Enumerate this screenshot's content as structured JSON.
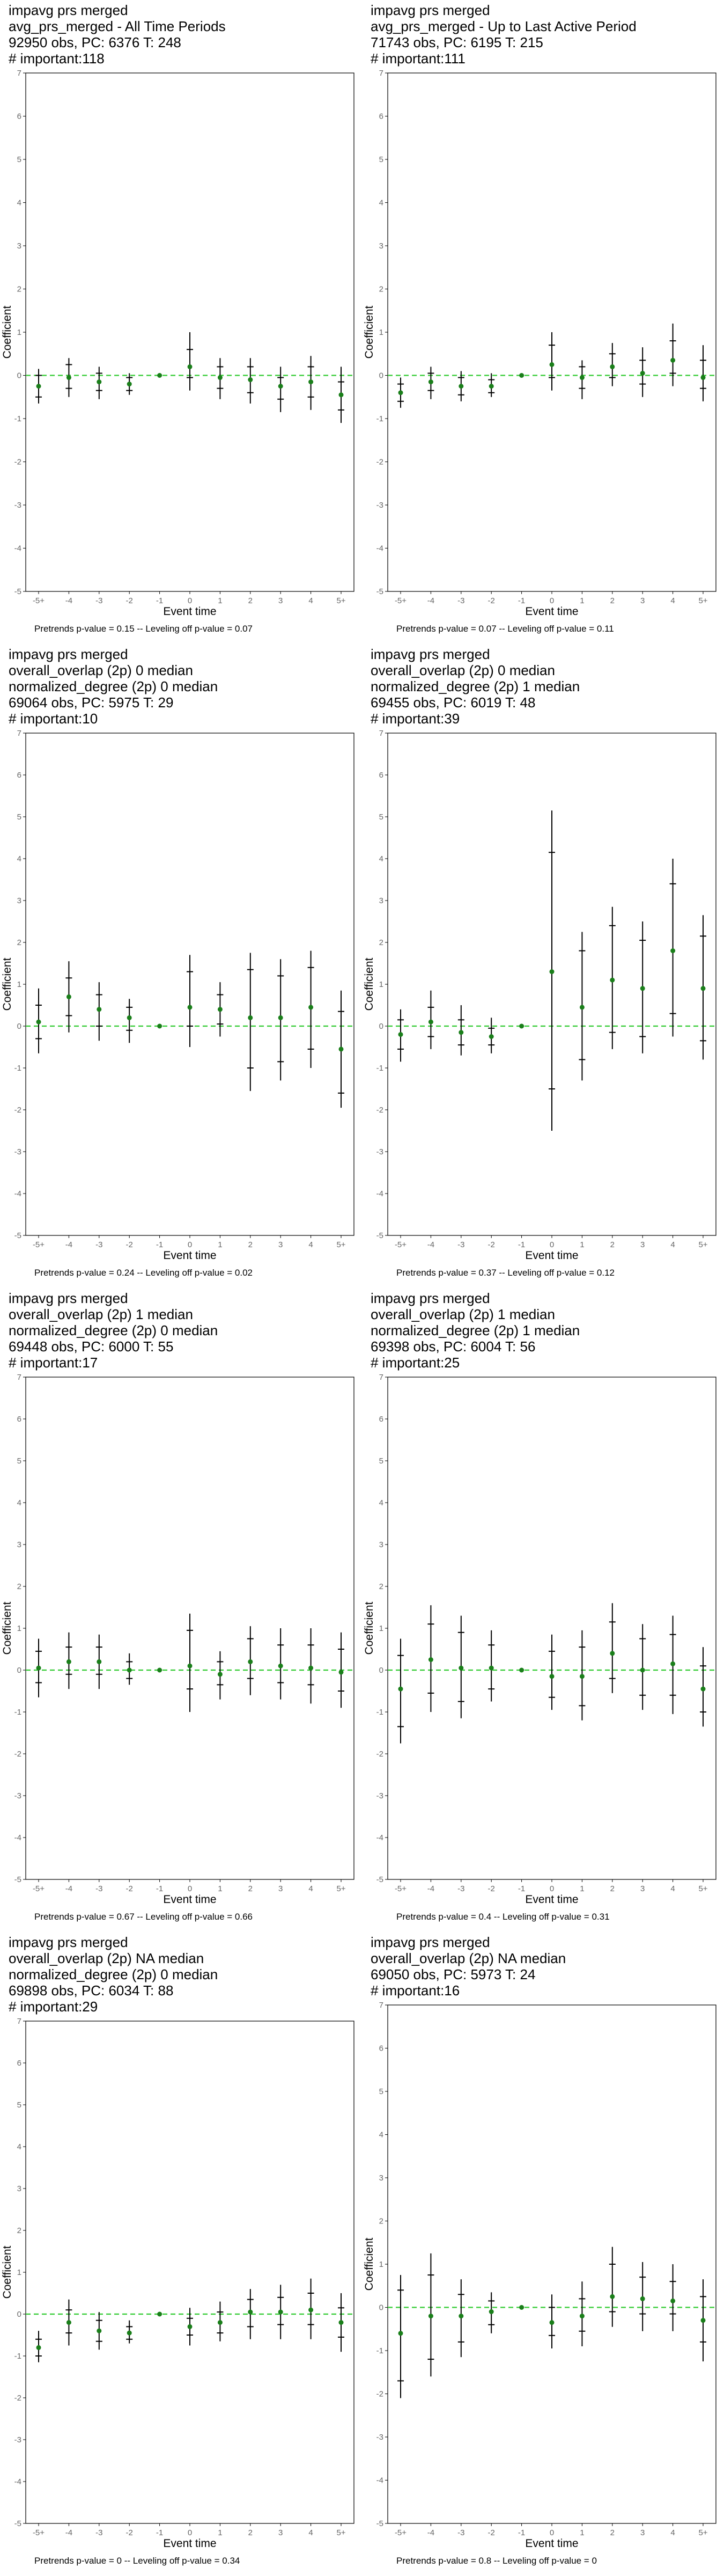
{
  "charts": [
    {
      "header": [
        "impavg prs merged",
        "avg_prs_merged - All Time Periods",
        "92950 obs, PC: 6376 T: 248",
        "# important:118"
      ],
      "footer": "Pretrends p-value = 0.15 -- Leveling off p-value = 0.07",
      "points": [
        {
          "y": -0.25,
          "ci": [
            -0.65,
            0.15
          ],
          "ci2": [
            -0.5,
            0.0
          ]
        },
        {
          "y": -0.05,
          "ci": [
            -0.5,
            0.4
          ],
          "ci2": [
            -0.3,
            0.25
          ]
        },
        {
          "y": -0.15,
          "ci": [
            -0.55,
            0.2
          ],
          "ci2": [
            -0.35,
            0.05
          ]
        },
        {
          "y": -0.2,
          "ci": [
            -0.45,
            0.05
          ],
          "ci2": [
            -0.35,
            -0.05
          ]
        },
        {
          "y": 0.0,
          "ci": [
            0.0,
            0.0
          ],
          "ci2": [
            0.0,
            0.0
          ]
        },
        {
          "y": 0.2,
          "ci": [
            -0.35,
            1.0
          ],
          "ci2": [
            -0.05,
            0.6
          ]
        },
        {
          "y": -0.05,
          "ci": [
            -0.55,
            0.4
          ],
          "ci2": [
            -0.3,
            0.2
          ]
        },
        {
          "y": -0.1,
          "ci": [
            -0.65,
            0.4
          ],
          "ci2": [
            -0.4,
            0.2
          ]
        },
        {
          "y": -0.25,
          "ci": [
            -0.85,
            0.2
          ],
          "ci2": [
            -0.55,
            -0.05
          ]
        },
        {
          "y": -0.15,
          "ci": [
            -0.8,
            0.45
          ],
          "ci2": [
            -0.5,
            0.2
          ]
        },
        {
          "y": -0.45,
          "ci": [
            -1.1,
            0.2
          ],
          "ci2": [
            -0.8,
            -0.15
          ]
        }
      ]
    },
    {
      "header": [
        "impavg prs merged",
        "avg_prs_merged - Up to Last Active Period",
        "71743 obs, PC: 6195 T: 215",
        "# important:111"
      ],
      "footer": "Pretrends p-value = 0.07 -- Leveling off p-value = 0.11",
      "points": [
        {
          "y": -0.4,
          "ci": [
            -0.75,
            -0.05
          ],
          "ci2": [
            -0.6,
            -0.2
          ]
        },
        {
          "y": -0.15,
          "ci": [
            -0.55,
            0.2
          ],
          "ci2": [
            -0.35,
            0.05
          ]
        },
        {
          "y": -0.25,
          "ci": [
            -0.6,
            0.1
          ],
          "ci2": [
            -0.45,
            -0.05
          ]
        },
        {
          "y": -0.25,
          "ci": [
            -0.5,
            0.05
          ],
          "ci2": [
            -0.4,
            -0.1
          ]
        },
        {
          "y": 0.0,
          "ci": [
            0.0,
            0.0
          ],
          "ci2": [
            0.0,
            0.0
          ]
        },
        {
          "y": 0.25,
          "ci": [
            -0.35,
            1.0
          ],
          "ci2": [
            -0.05,
            0.7
          ]
        },
        {
          "y": -0.05,
          "ci": [
            -0.55,
            0.35
          ],
          "ci2": [
            -0.3,
            0.2
          ]
        },
        {
          "y": 0.2,
          "ci": [
            -0.25,
            0.75
          ],
          "ci2": [
            -0.05,
            0.5
          ]
        },
        {
          "y": 0.05,
          "ci": [
            -0.5,
            0.65
          ],
          "ci2": [
            -0.2,
            0.35
          ]
        },
        {
          "y": 0.35,
          "ci": [
            -0.25,
            1.2
          ],
          "ci2": [
            0.05,
            0.8
          ]
        },
        {
          "y": -0.05,
          "ci": [
            -0.6,
            0.7
          ],
          "ci2": [
            -0.3,
            0.35
          ]
        }
      ]
    },
    {
      "header": [
        "impavg prs merged",
        "overall_overlap (2p) 0 median",
        "normalized_degree (2p) 0 median",
        "69064 obs, PC: 5975 T: 29",
        "# important:10"
      ],
      "footer": "Pretrends p-value = 0.24 -- Leveling off p-value = 0.02",
      "points": [
        {
          "y": 0.1,
          "ci": [
            -0.65,
            0.9
          ],
          "ci2": [
            -0.3,
            0.5
          ]
        },
        {
          "y": 0.7,
          "ci": [
            -0.15,
            1.55
          ],
          "ci2": [
            0.25,
            1.15
          ]
        },
        {
          "y": 0.4,
          "ci": [
            -0.35,
            1.05
          ],
          "ci2": [
            0.0,
            0.75
          ]
        },
        {
          "y": 0.2,
          "ci": [
            -0.4,
            0.65
          ],
          "ci2": [
            -0.1,
            0.45
          ]
        },
        {
          "y": 0.0,
          "ci": [
            0.0,
            0.0
          ],
          "ci2": [
            0.0,
            0.0
          ]
        },
        {
          "y": 0.45,
          "ci": [
            -0.5,
            1.7
          ],
          "ci2": [
            0.0,
            1.3
          ]
        },
        {
          "y": 0.4,
          "ci": [
            -0.25,
            1.05
          ],
          "ci2": [
            0.05,
            0.75
          ]
        },
        {
          "y": 0.2,
          "ci": [
            -1.55,
            1.75
          ],
          "ci2": [
            -1.0,
            1.35
          ]
        },
        {
          "y": 0.2,
          "ci": [
            -1.3,
            1.6
          ],
          "ci2": [
            -0.85,
            1.2
          ]
        },
        {
          "y": 0.45,
          "ci": [
            -1.0,
            1.8
          ],
          "ci2": [
            -0.55,
            1.4
          ]
        },
        {
          "y": -0.55,
          "ci": [
            -1.95,
            0.85
          ],
          "ci2": [
            -1.6,
            0.35
          ]
        }
      ]
    },
    {
      "header": [
        "impavg prs merged",
        "overall_overlap (2p) 0 median",
        "normalized_degree (2p) 1 median",
        "69455 obs, PC: 6019 T: 48",
        "# important:39"
      ],
      "footer": "Pretrends p-value = 0.37 -- Leveling off p-value = 0.12",
      "points": [
        {
          "y": -0.2,
          "ci": [
            -0.85,
            0.4
          ],
          "ci2": [
            -0.55,
            0.15
          ]
        },
        {
          "y": 0.1,
          "ci": [
            -0.55,
            0.85
          ],
          "ci2": [
            -0.25,
            0.45
          ]
        },
        {
          "y": -0.15,
          "ci": [
            -0.7,
            0.5
          ],
          "ci2": [
            -0.45,
            0.15
          ]
        },
        {
          "y": -0.25,
          "ci": [
            -0.65,
            0.2
          ],
          "ci2": [
            -0.45,
            -0.05
          ]
        },
        {
          "y": 0.0,
          "ci": [
            0.0,
            0.0
          ],
          "ci2": [
            0.0,
            0.0
          ]
        },
        {
          "y": 1.3,
          "ci": [
            -2.5,
            5.15
          ],
          "ci2": [
            -1.5,
            4.15
          ]
        },
        {
          "y": 0.45,
          "ci": [
            -1.3,
            2.25
          ],
          "ci2": [
            -0.8,
            1.8
          ]
        },
        {
          "y": 1.1,
          "ci": [
            -0.55,
            2.85
          ],
          "ci2": [
            -0.15,
            2.4
          ]
        },
        {
          "y": 0.9,
          "ci": [
            -0.65,
            2.5
          ],
          "ci2": [
            -0.25,
            2.05
          ]
        },
        {
          "y": 1.8,
          "ci": [
            -0.25,
            4.0
          ],
          "ci2": [
            0.3,
            3.4
          ]
        },
        {
          "y": 0.9,
          "ci": [
            -0.8,
            2.65
          ],
          "ci2": [
            -0.35,
            2.15
          ]
        }
      ]
    },
    {
      "header": [
        "impavg prs merged",
        "overall_overlap (2p) 1 median",
        "normalized_degree (2p) 0 median",
        "69448 obs, PC: 6000 T: 55",
        "# important:17"
      ],
      "footer": "Pretrends p-value = 0.67 -- Leveling off p-value = 0.66",
      "points": [
        {
          "y": 0.05,
          "ci": [
            -0.65,
            0.75
          ],
          "ci2": [
            -0.3,
            0.45
          ]
        },
        {
          "y": 0.2,
          "ci": [
            -0.45,
            0.9
          ],
          "ci2": [
            -0.1,
            0.55
          ]
        },
        {
          "y": 0.2,
          "ci": [
            -0.45,
            0.85
          ],
          "ci2": [
            -0.1,
            0.55
          ]
        },
        {
          "y": 0.0,
          "ci": [
            -0.35,
            0.4
          ],
          "ci2": [
            -0.2,
            0.2
          ]
        },
        {
          "y": 0.0,
          "ci": [
            0.0,
            0.0
          ],
          "ci2": [
            0.0,
            0.0
          ]
        },
        {
          "y": 0.1,
          "ci": [
            -1.0,
            1.35
          ],
          "ci2": [
            -0.45,
            0.95
          ]
        },
        {
          "y": -0.1,
          "ci": [
            -0.7,
            0.45
          ],
          "ci2": [
            -0.35,
            0.2
          ]
        },
        {
          "y": 0.2,
          "ci": [
            -0.6,
            1.05
          ],
          "ci2": [
            -0.2,
            0.75
          ]
        },
        {
          "y": 0.1,
          "ci": [
            -0.7,
            1.0
          ],
          "ci2": [
            -0.3,
            0.6
          ]
        },
        {
          "y": 0.05,
          "ci": [
            -0.8,
            1.0
          ],
          "ci2": [
            -0.35,
            0.6
          ]
        },
        {
          "y": -0.05,
          "ci": [
            -0.9,
            0.9
          ],
          "ci2": [
            -0.5,
            0.5
          ]
        }
      ]
    },
    {
      "header": [
        "impavg prs merged",
        "overall_overlap (2p) 1 median",
        "normalized_degree (2p) 1 median",
        "69398 obs, PC: 6004 T: 56",
        "# important:25"
      ],
      "footer": "Pretrends p-value = 0.4 -- Leveling off p-value = 0.31",
      "points": [
        {
          "y": -0.45,
          "ci": [
            -1.75,
            0.75
          ],
          "ci2": [
            -1.35,
            0.35
          ]
        },
        {
          "y": 0.25,
          "ci": [
            -1.0,
            1.55
          ],
          "ci2": [
            -0.55,
            1.1
          ]
        },
        {
          "y": 0.05,
          "ci": [
            -1.15,
            1.3
          ],
          "ci2": [
            -0.75,
            0.9
          ]
        },
        {
          "y": 0.05,
          "ci": [
            -0.75,
            0.95
          ],
          "ci2": [
            -0.45,
            0.6
          ]
        },
        {
          "y": 0.0,
          "ci": [
            0.0,
            0.0
          ],
          "ci2": [
            0.0,
            0.0
          ]
        },
        {
          "y": -0.15,
          "ci": [
            -0.95,
            0.85
          ],
          "ci2": [
            -0.65,
            0.45
          ]
        },
        {
          "y": -0.15,
          "ci": [
            -1.2,
            0.95
          ],
          "ci2": [
            -0.85,
            0.55
          ]
        },
        {
          "y": 0.4,
          "ci": [
            -0.55,
            1.6
          ],
          "ci2": [
            -0.2,
            1.15
          ]
        },
        {
          "y": 0.0,
          "ci": [
            -0.95,
            1.1
          ],
          "ci2": [
            -0.6,
            0.75
          ]
        },
        {
          "y": 0.15,
          "ci": [
            -1.05,
            1.3
          ],
          "ci2": [
            -0.6,
            0.85
          ]
        },
        {
          "y": -0.45,
          "ci": [
            -1.35,
            0.55
          ],
          "ci2": [
            -1.0,
            0.1
          ]
        }
      ]
    },
    {
      "header": [
        "impavg prs merged",
        "overall_overlap (2p) NA median",
        "normalized_degree (2p) 0 median",
        "69898 obs, PC: 6034 T: 88",
        "# important:29"
      ],
      "footer": "Pretrends p-value = 0 -- Leveling off p-value = 0.34",
      "points": [
        {
          "y": -0.8,
          "ci": [
            -1.15,
            -0.4
          ],
          "ci2": [
            -1.0,
            -0.6
          ]
        },
        {
          "y": -0.2,
          "ci": [
            -0.75,
            0.35
          ],
          "ci2": [
            -0.45,
            0.1
          ]
        },
        {
          "y": -0.4,
          "ci": [
            -0.85,
            0.05
          ],
          "ci2": [
            -0.65,
            -0.15
          ]
        },
        {
          "y": -0.45,
          "ci": [
            -0.7,
            -0.15
          ],
          "ci2": [
            -0.6,
            -0.3
          ]
        },
        {
          "y": 0.0,
          "ci": [
            0.0,
            0.0
          ],
          "ci2": [
            0.0,
            0.0
          ]
        },
        {
          "y": -0.3,
          "ci": [
            -0.75,
            0.15
          ],
          "ci2": [
            -0.5,
            -0.1
          ]
        },
        {
          "y": -0.2,
          "ci": [
            -0.65,
            0.3
          ],
          "ci2": [
            -0.45,
            0.05
          ]
        },
        {
          "y": 0.05,
          "ci": [
            -0.6,
            0.6
          ],
          "ci2": [
            -0.3,
            0.35
          ]
        },
        {
          "y": 0.05,
          "ci": [
            -0.6,
            0.7
          ],
          "ci2": [
            -0.25,
            0.4
          ]
        },
        {
          "y": 0.1,
          "ci": [
            -0.6,
            0.85
          ],
          "ci2": [
            -0.25,
            0.5
          ]
        },
        {
          "y": -0.2,
          "ci": [
            -0.9,
            0.5
          ],
          "ci2": [
            -0.55,
            0.15
          ]
        }
      ]
    },
    {
      "header": [
        "impavg prs merged",
        "overall_overlap (2p) NA median",
        "69050 obs, PC: 5973 T: 24",
        "# important:16"
      ],
      "footer": "Pretrends p-value = 0.8 -- Leveling off p-value = 0",
      "points": [
        {
          "y": -0.6,
          "ci": [
            -2.1,
            0.75
          ],
          "ci2": [
            -1.7,
            0.4
          ]
        },
        {
          "y": -0.2,
          "ci": [
            -1.6,
            1.25
          ],
          "ci2": [
            -1.2,
            0.75
          ]
        },
        {
          "y": -0.2,
          "ci": [
            -1.15,
            0.65
          ],
          "ci2": [
            -0.8,
            0.3
          ]
        },
        {
          "y": -0.1,
          "ci": [
            -0.6,
            0.35
          ],
          "ci2": [
            -0.4,
            0.15
          ]
        },
        {
          "y": 0.0,
          "ci": [
            0.0,
            0.0
          ],
          "ci2": [
            0.0,
            0.0
          ]
        },
        {
          "y": -0.35,
          "ci": [
            -0.95,
            0.3
          ],
          "ci2": [
            -0.65,
            0.0
          ]
        },
        {
          "y": -0.2,
          "ci": [
            -0.9,
            0.6
          ],
          "ci2": [
            -0.55,
            0.2
          ]
        },
        {
          "y": 0.25,
          "ci": [
            -0.45,
            1.4
          ],
          "ci2": [
            -0.1,
            1.0
          ]
        },
        {
          "y": 0.2,
          "ci": [
            -0.55,
            1.05
          ],
          "ci2": [
            -0.15,
            0.7
          ]
        },
        {
          "y": 0.15,
          "ci": [
            -0.55,
            1.0
          ],
          "ci2": [
            -0.15,
            0.6
          ]
        },
        {
          "y": -0.3,
          "ci": [
            -1.25,
            0.65
          ],
          "ci2": [
            -0.8,
            0.25
          ]
        }
      ]
    }
  ],
  "chart_data": {
    "type": "scatter",
    "categories": [
      "-5+",
      "-4",
      "-3",
      "-2",
      "-1",
      "0",
      "1",
      "2",
      "3",
      "4",
      "5+"
    ],
    "xlabel": "Event time",
    "ylabel": "Coefficient",
    "ylim": [
      -5,
      7
    ],
    "yticks": [
      -5,
      -4,
      -3,
      -2,
      -1,
      0,
      1,
      2,
      3,
      4,
      5,
      6,
      7
    ],
    "grid": false,
    "reference_line": 0
  },
  "colors": {
    "point": "#1a7f1a",
    "reference_line": "#33cc33",
    "errorbar": "#000000",
    "axis": "#000000",
    "tick_label": "#666666"
  }
}
